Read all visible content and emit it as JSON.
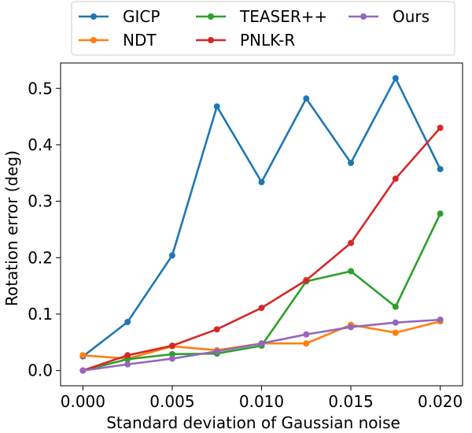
{
  "chart_data": {
    "type": "line",
    "xlabel": "Standard deviation of Gaussian noise",
    "ylabel": "Rotation error (deg)",
    "x": [
      0.0,
      0.0025,
      0.005,
      0.0075,
      0.01,
      0.0125,
      0.015,
      0.0175,
      0.02
    ],
    "xlim": [
      -0.00125,
      0.02125
    ],
    "ylim": [
      -0.027,
      0.545
    ],
    "xticks": [
      0.0,
      0.005,
      0.01,
      0.015,
      0.02
    ],
    "xtick_labels": [
      "0.000",
      "0.005",
      "0.010",
      "0.015",
      "0.020"
    ],
    "yticks": [
      0.0,
      0.1,
      0.2,
      0.3,
      0.4,
      0.5
    ],
    "ytick_labels": [
      "0.0",
      "0.1",
      "0.2",
      "0.3",
      "0.4",
      "0.5"
    ],
    "legend_position": "top, above plot",
    "series": [
      {
        "name": "GICP",
        "color": "#1f77b4",
        "values": [
          0.025,
          0.086,
          0.204,
          0.468,
          0.334,
          0.482,
          0.368,
          0.518,
          0.357
        ]
      },
      {
        "name": "NDT",
        "color": "#ff7f0e",
        "values": [
          0.027,
          0.021,
          0.043,
          0.036,
          0.048,
          0.048,
          0.081,
          0.067,
          0.087
        ]
      },
      {
        "name": "TEASER++",
        "color": "#2ca02c",
        "values": [
          0.0,
          0.02,
          0.029,
          0.03,
          0.044,
          0.158,
          0.176,
          0.113,
          0.278
        ]
      },
      {
        "name": "PNLK-R",
        "color": "#d62728",
        "values": [
          0.0,
          0.027,
          0.044,
          0.073,
          0.111,
          0.16,
          0.226,
          0.34,
          0.43
        ]
      },
      {
        "name": "Ours",
        "color": "#9467bd",
        "values": [
          0.0,
          0.011,
          0.021,
          0.034,
          0.048,
          0.064,
          0.077,
          0.085,
          0.09
        ]
      }
    ]
  }
}
